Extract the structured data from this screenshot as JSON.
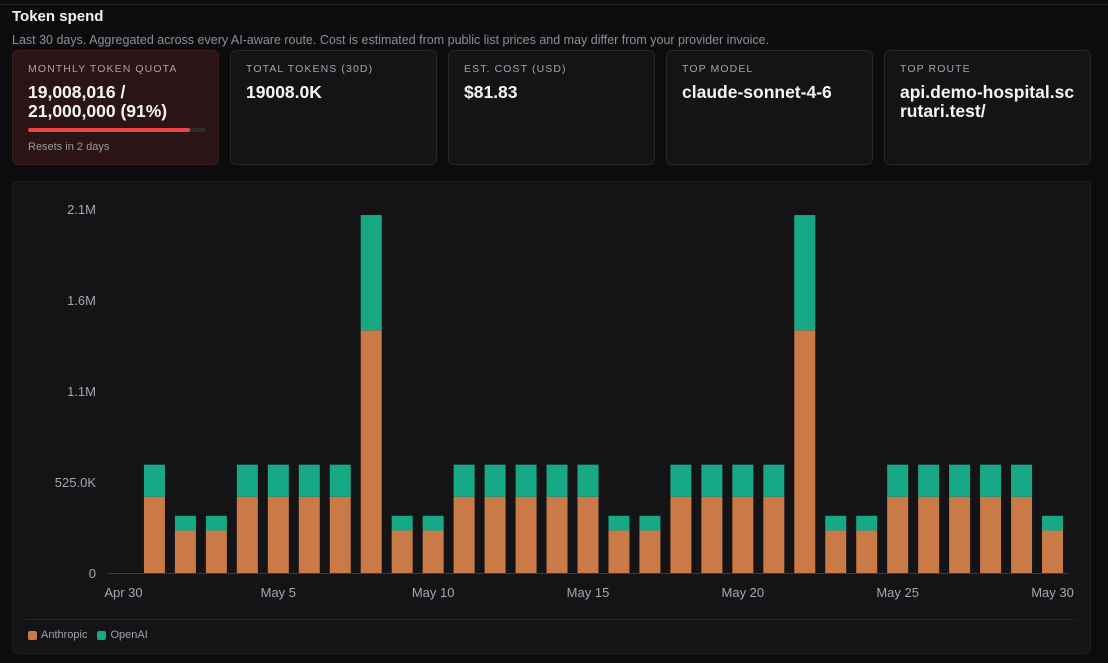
{
  "header": {
    "title": "Token spend",
    "subtitle": "Last 30 days. Aggregated across every AI-aware route. Cost is estimated from public list prices and may differ from your provider invoice."
  },
  "cards": {
    "quota": {
      "label": "MONTHLY TOKEN QUOTA",
      "value": "19,008,016 / 21,000,000 (91%)",
      "progress": 0.91,
      "note": "Resets in 2 days"
    },
    "total_tokens": {
      "label": "TOTAL TOKENS (30D)",
      "value": "19008.0K"
    },
    "cost": {
      "label": "EST. COST (USD)",
      "value": "$81.83"
    },
    "top_model": {
      "label": "TOP MODEL",
      "value": "claude-sonnet-4-6"
    },
    "top_route": {
      "label": "TOP ROUTE",
      "value": "api.demo-hospital.scrutari.test/"
    }
  },
  "colors": {
    "anthropic": "#c97a46",
    "openai": "#17a886",
    "quota_bar": "#ef4444"
  },
  "chart_data": {
    "type": "bar",
    "stacked": true,
    "categories": [
      "Apr 30",
      "May 1",
      "May 2",
      "May 3",
      "May 4",
      "May 5",
      "May 6",
      "May 7",
      "May 8",
      "May 9",
      "May 10",
      "May 11",
      "May 12",
      "May 13",
      "May 14",
      "May 15",
      "May 16",
      "May 17",
      "May 18",
      "May 19",
      "May 20",
      "May 21",
      "May 22",
      "May 23",
      "May 24",
      "May 25",
      "May 26",
      "May 27",
      "May 28",
      "May 29",
      "May 30"
    ],
    "x_tick_labels": [
      "Apr 30",
      "May 5",
      "May 10",
      "May 15",
      "May 20",
      "May 25",
      "May 30"
    ],
    "y_tick_labels": [
      "0",
      "525.0K",
      "1.1M",
      "1.6M",
      "2.1M"
    ],
    "y_ticks": [
      0,
      525000,
      1050000,
      1575000,
      2100000
    ],
    "ylim": [
      0,
      2100000
    ],
    "series": [
      {
        "name": "Anthropic",
        "values": [
          0,
          440000,
          245000,
          245000,
          440000,
          440000,
          440000,
          440000,
          1400000,
          245000,
          245000,
          440000,
          440000,
          440000,
          440000,
          440000,
          245000,
          245000,
          440000,
          440000,
          440000,
          440000,
          1400000,
          245000,
          245000,
          440000,
          440000,
          440000,
          440000,
          440000,
          245000
        ]
      },
      {
        "name": "OpenAI",
        "values": [
          0,
          185000,
          85000,
          85000,
          185000,
          185000,
          185000,
          185000,
          665000,
          85000,
          85000,
          185000,
          185000,
          185000,
          185000,
          185000,
          85000,
          85000,
          185000,
          185000,
          185000,
          185000,
          665000,
          85000,
          85000,
          185000,
          185000,
          185000,
          185000,
          185000,
          85000
        ]
      }
    ],
    "legend": [
      "Anthropic",
      "OpenAI"
    ],
    "legend_position": "bottom-left",
    "grid": false
  }
}
